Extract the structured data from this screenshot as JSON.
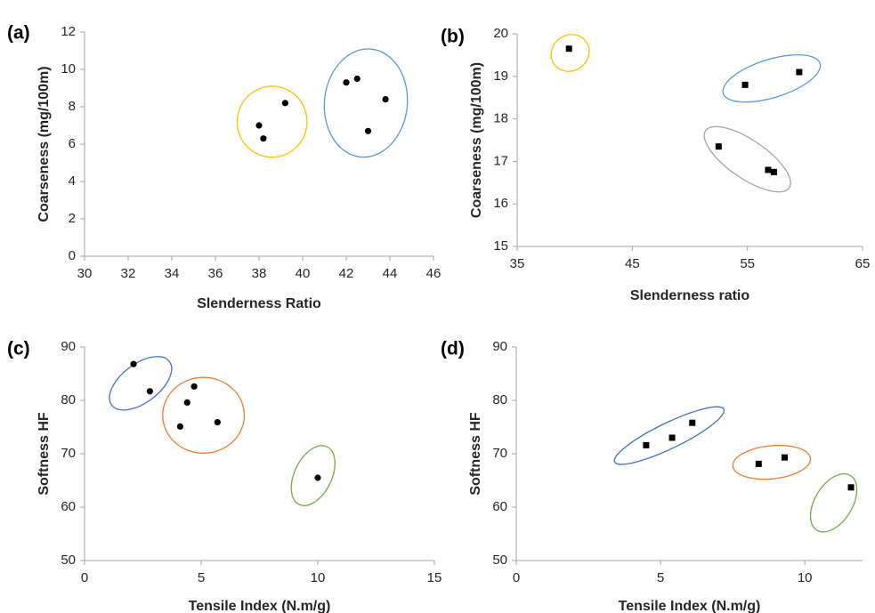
{
  "chart_data": [
    {
      "panel": "(a)",
      "type": "scatter",
      "marker": "circle",
      "xlabel": "Slenderness Ratio",
      "ylabel": "Coarseness (mg/100m)",
      "xlim": [
        30,
        46
      ],
      "ylim": [
        0,
        12
      ],
      "xticks": [
        30,
        32,
        34,
        36,
        38,
        40,
        42,
        44,
        46
      ],
      "yticks": [
        0,
        2,
        4,
        6,
        8,
        10,
        12
      ],
      "points": [
        {
          "x": 38.0,
          "y": 7.0
        },
        {
          "x": 38.2,
          "y": 6.3
        },
        {
          "x": 39.2,
          "y": 8.2
        },
        {
          "x": 42.0,
          "y": 9.3
        },
        {
          "x": 42.5,
          "y": 9.5
        },
        {
          "x": 43.0,
          "y": 6.7
        },
        {
          "x": 43.8,
          "y": 8.4
        }
      ],
      "clusters": [
        {
          "color": "#ffc000",
          "cx": 38.6,
          "cy": 7.2,
          "rx": 1.6,
          "ry": 1.9,
          "angle": 0.15
        },
        {
          "color": "#5b9bd5",
          "cx": 42.9,
          "cy": 8.2,
          "rx": 1.9,
          "ry": 2.9,
          "angle": 0.1
        }
      ]
    },
    {
      "panel": "(b)",
      "type": "scatter",
      "marker": "square",
      "xlabel": "Slenderness ratio",
      "ylabel": "Coarseness (mg/100m)",
      "xlim": [
        35,
        65
      ],
      "ylim": [
        15,
        20
      ],
      "xticks": [
        35,
        45,
        55,
        65
      ],
      "yticks": [
        15,
        16,
        17,
        18,
        19,
        20
      ],
      "points": [
        {
          "x": 39.5,
          "y": 19.65
        },
        {
          "x": 54.8,
          "y": 18.8
        },
        {
          "x": 59.5,
          "y": 19.1
        },
        {
          "x": 52.5,
          "y": 17.35
        },
        {
          "x": 56.8,
          "y": 16.8
        },
        {
          "x": 57.3,
          "y": 16.75
        }
      ],
      "clusters": [
        {
          "color": "#ffc000",
          "cx": 39.6,
          "cy": 19.55,
          "rx": 1.7,
          "ry": 0.42,
          "angle": -0.6
        },
        {
          "color": "#5b9bd5",
          "cx": 57.1,
          "cy": 18.95,
          "rx": 4.4,
          "ry": 0.45,
          "angle": -0.3
        },
        {
          "color": "#a5a5a5",
          "cx": 55.0,
          "cy": 17.05,
          "rx": 4.4,
          "ry": 0.45,
          "angle": 0.6
        }
      ]
    },
    {
      "panel": "(c)",
      "type": "scatter",
      "marker": "circle",
      "xlabel": "Tensile Index (N.m/g)",
      "ylabel": "Softness HF",
      "xlim": [
        0,
        15
      ],
      "ylim": [
        50,
        90
      ],
      "xticks": [
        0,
        5,
        10,
        15
      ],
      "yticks": [
        50,
        60,
        70,
        80,
        90
      ],
      "points": [
        {
          "x": 2.1,
          "y": 86.8
        },
        {
          "x": 2.8,
          "y": 81.7
        },
        {
          "x": 4.1,
          "y": 75.1
        },
        {
          "x": 4.4,
          "y": 79.6
        },
        {
          "x": 4.7,
          "y": 82.6
        },
        {
          "x": 5.7,
          "y": 75.9
        },
        {
          "x": 10.0,
          "y": 65.5
        }
      ],
      "clusters": [
        {
          "color": "#4472c4",
          "cx": 2.4,
          "cy": 83.2,
          "rx": 1.55,
          "ry": 3.6,
          "angle": -0.65
        },
        {
          "color": "#ed7d31",
          "cx": 5.1,
          "cy": 77.2,
          "rx": 1.75,
          "ry": 7.1,
          "angle": 0.0
        },
        {
          "color": "#70ad47",
          "cx": 9.8,
          "cy": 65.9,
          "rx": 0.8,
          "ry": 6.0,
          "angle": 0.45
        }
      ]
    },
    {
      "panel": "(d)",
      "type": "scatter",
      "marker": "square",
      "xlabel": "Tensile Index (N.m/g)",
      "ylabel": "Softness HF",
      "xlim": [
        0,
        12
      ],
      "ylim": [
        50,
        90
      ],
      "xticks": [
        0,
        5,
        10
      ],
      "yticks": [
        50,
        60,
        70,
        80,
        90
      ],
      "points": [
        {
          "x": 4.5,
          "y": 71.6
        },
        {
          "x": 5.4,
          "y": 73.0
        },
        {
          "x": 6.1,
          "y": 75.8
        },
        {
          "x": 8.4,
          "y": 68.1
        },
        {
          "x": 9.3,
          "y": 69.3
        },
        {
          "x": 11.6,
          "y": 63.7
        }
      ],
      "clusters": [
        {
          "color": "#4472c4",
          "cx": 5.3,
          "cy": 73.4,
          "rx": 2.1,
          "ry": 2.4,
          "angle": -0.45
        },
        {
          "color": "#ed7d31",
          "cx": 8.85,
          "cy": 68.4,
          "rx": 1.35,
          "ry": 3.1,
          "angle": -0.1
        },
        {
          "color": "#70ad47",
          "cx": 11.0,
          "cy": 60.8,
          "rx": 0.65,
          "ry": 6.0,
          "angle": 0.55
        }
      ]
    }
  ]
}
